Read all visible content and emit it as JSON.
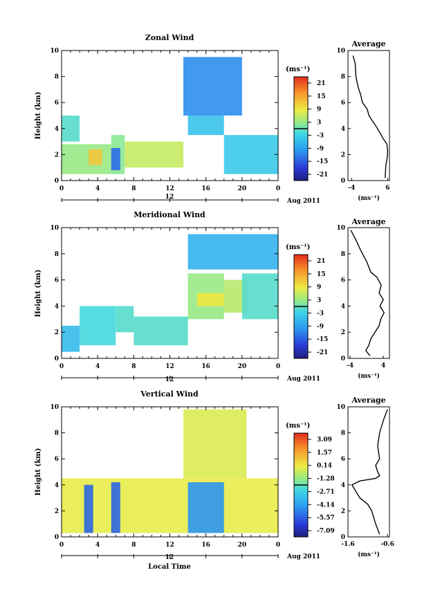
{
  "chart_data": [
    {
      "type": "heatmap",
      "title": "Zonal Wind",
      "ylabel": "Height (km)",
      "ylim": [
        0,
        10
      ],
      "y_ticks": [
        "0",
        "2",
        "4",
        "6",
        "8",
        "10"
      ],
      "x_ticks": [
        "0",
        "4",
        "8",
        "12",
        "16",
        "20",
        "0"
      ],
      "day_label": "12",
      "month_label": "Aug 2011",
      "colorbar": {
        "unit": "(ms⁻¹)",
        "ticks": [
          "21",
          "15",
          "9",
          "3",
          "-3",
          "-9",
          "-15",
          "-21"
        ],
        "range": [
          -24,
          24
        ]
      },
      "regions": [
        {
          "x": [
            0,
            5.5
          ],
          "y": [
            0.5,
            2.8
          ],
          "value": 3
        },
        {
          "x": [
            3,
            4.5
          ],
          "y": [
            1.2,
            2.4
          ],
          "value": 12
        },
        {
          "x": [
            5.5,
            7
          ],
          "y": [
            0.5,
            3.5
          ],
          "value": 2
        },
        {
          "x": [
            0,
            2
          ],
          "y": [
            3.0,
            5.0
          ],
          "value": -1
        },
        {
          "x": [
            5.5,
            6.5
          ],
          "y": [
            0.8,
            2.5
          ],
          "value": -14
        },
        {
          "x": [
            7,
            13.5
          ],
          "y": [
            1.0,
            3.0
          ],
          "value": 6
        },
        {
          "x": [
            13.5,
            20
          ],
          "y": [
            5.0,
            9.5
          ],
          "value": -11
        },
        {
          "x": [
            14,
            18
          ],
          "y": [
            3.5,
            5.0
          ],
          "value": -5
        },
        {
          "x": [
            18,
            24
          ],
          "y": [
            0.5,
            3.5
          ],
          "value": -4
        }
      ],
      "average": {
        "title": "Average",
        "xlabel": "(ms⁻¹)",
        "xlim": [
          -5,
          6.5
        ],
        "x_ticks": [
          "-4",
          "6"
        ],
        "x": [
          -3.6,
          -3.0,
          -2.8,
          -2.2,
          -1.5,
          -1.0,
          0.3,
          0.8,
          1.5,
          2.5,
          4.0,
          4.8,
          5.8,
          6.0,
          5.9,
          5.5,
          5.3
        ],
        "y": [
          9.6,
          9.0,
          8.0,
          7.2,
          6.6,
          6.0,
          5.5,
          5.0,
          4.7,
          4.3,
          3.6,
          3.2,
          2.8,
          2.3,
          1.8,
          1.2,
          0.2
        ]
      }
    },
    {
      "type": "heatmap",
      "title": "Meridional Wind",
      "ylabel": "Height (km)",
      "ylim": [
        0,
        10
      ],
      "y_ticks": [
        "0",
        "2",
        "4",
        "6",
        "8",
        "10"
      ],
      "x_ticks": [
        "0",
        "4",
        "8",
        "12",
        "16",
        "20",
        "0"
      ],
      "day_label": "12",
      "month_label": "Aug 2011",
      "colorbar": {
        "unit": "(ms⁻¹)",
        "ticks": [
          "21",
          "15",
          "9",
          "3",
          "-3",
          "-9",
          "-15",
          "-21"
        ],
        "range": [
          -24,
          24
        ]
      },
      "regions": [
        {
          "x": [
            0,
            2
          ],
          "y": [
            0.5,
            2.5
          ],
          "value": -6
        },
        {
          "x": [
            2,
            6
          ],
          "y": [
            1.0,
            4.0
          ],
          "value": -2
        },
        {
          "x": [
            6,
            8
          ],
          "y": [
            2.0,
            4.0
          ],
          "value": -1
        },
        {
          "x": [
            8,
            14
          ],
          "y": [
            1.0,
            3.2
          ],
          "value": -1
        },
        {
          "x": [
            14,
            18
          ],
          "y": [
            3.0,
            6.5
          ],
          "value": 3
        },
        {
          "x": [
            15,
            18
          ],
          "y": [
            4.0,
            5.0
          ],
          "value": 9
        },
        {
          "x": [
            18,
            20.5
          ],
          "y": [
            3.5,
            6.0
          ],
          "value": 5
        },
        {
          "x": [
            14,
            24
          ],
          "y": [
            6.8,
            9.5
          ],
          "value": -7
        },
        {
          "x": [
            20,
            24
          ],
          "y": [
            3.0,
            6.5
          ],
          "value": -1
        }
      ],
      "average": {
        "title": "Average",
        "xlabel": "(ms⁻¹)",
        "xlim": [
          -4.5,
          5.5
        ],
        "x_ticks": [
          "-4",
          "4"
        ],
        "x": [
          -3.8,
          -2.5,
          -1.5,
          0.0,
          1.0,
          2.5,
          3.5,
          3.0,
          4.0,
          3.2,
          4.2,
          3.4,
          3.0,
          2.0,
          1.0,
          0.5,
          -0.2,
          0.8
        ],
        "y": [
          9.8,
          9.0,
          8.3,
          7.4,
          6.6,
          6.2,
          5.6,
          5.0,
          4.5,
          4.0,
          3.5,
          3.0,
          2.5,
          2.0,
          1.5,
          1.0,
          0.6,
          0.2
        ]
      }
    },
    {
      "type": "heatmap",
      "title": "Vertical Wind",
      "ylabel": "Height (km)",
      "xlabel": "Local Time",
      "ylim": [
        0,
        10
      ],
      "y_ticks": [
        "0",
        "2",
        "4",
        "6",
        "8",
        "10"
      ],
      "x_ticks": [
        "0",
        "4",
        "8",
        "12",
        "16",
        "20",
        "0"
      ],
      "day_label": "12",
      "month_label": "Aug 2011",
      "colorbar": {
        "unit": "(ms⁻¹)",
        "ticks": [
          "3.09",
          "1.57",
          "0.14",
          "-1.28",
          "-2.71",
          "-4.14",
          "-5.57",
          "-7.09"
        ],
        "range": [
          -7.8,
          3.8
        ]
      },
      "regions": [
        {
          "x": [
            0,
            24
          ],
          "y": [
            0.3,
            4.5
          ],
          "value": 0.0
        },
        {
          "x": [
            2.5,
            3.5
          ],
          "y": [
            0.3,
            4.0
          ],
          "value": -5.5
        },
        {
          "x": [
            5.5,
            6.5
          ],
          "y": [
            0.3,
            4.2
          ],
          "value": -5.5
        },
        {
          "x": [
            14,
            18
          ],
          "y": [
            0.3,
            4.2
          ],
          "value": -4.5
        },
        {
          "x": [
            13.5,
            20.5
          ],
          "y": [
            4.5,
            9.8
          ],
          "value": -0.2
        }
      ],
      "average": {
        "title": "Average",
        "xlabel": "(ms⁻¹)",
        "xlim": [
          -1.6,
          -0.55
        ],
        "x_ticks": [
          "-1.6",
          "-0.6"
        ],
        "x": [
          -0.6,
          -0.7,
          -0.8,
          -0.85,
          -0.8,
          -0.9,
          -0.85,
          -0.8,
          -0.9,
          -1.3,
          -1.5,
          -1.4,
          -1.3,
          -1.1,
          -1.0,
          -0.9,
          -0.8
        ],
        "y": [
          9.8,
          9.0,
          8.0,
          7.0,
          6.0,
          5.5,
          5.0,
          4.7,
          4.5,
          4.3,
          4.0,
          3.5,
          3.0,
          2.5,
          2.0,
          1.0,
          0.2
        ]
      }
    }
  ]
}
